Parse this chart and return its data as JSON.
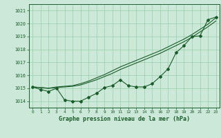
{
  "xlabel": "Graphe pression niveau de la mer (hPa)",
  "xlim": [
    -0.5,
    23.5
  ],
  "ylim": [
    1013.5,
    1021.5
  ],
  "yticks": [
    1014,
    1015,
    1016,
    1017,
    1018,
    1019,
    1020,
    1021
  ],
  "xticks": [
    0,
    1,
    2,
    3,
    4,
    5,
    6,
    7,
    8,
    9,
    10,
    11,
    12,
    13,
    14,
    15,
    16,
    17,
    18,
    19,
    20,
    21,
    22,
    23
  ],
  "bg_color": "#cce8d8",
  "grid_color": "#99ccaa",
  "line_color": "#1a5c2a",
  "line_zigzag": [
    1015.1,
    1014.9,
    1014.75,
    1015.0,
    1014.1,
    1014.0,
    1014.0,
    1014.3,
    1014.6,
    1015.05,
    1015.2,
    1015.65,
    1015.2,
    1015.1,
    1015.1,
    1015.35,
    1015.9,
    1016.5,
    1017.75,
    1018.3,
    1019.0,
    1019.05,
    1020.3,
    1020.5
  ],
  "line_upper1": [
    1015.1,
    1015.05,
    1015.0,
    1015.1,
    1015.15,
    1015.2,
    1015.35,
    1015.55,
    1015.8,
    1016.05,
    1016.35,
    1016.65,
    1016.9,
    1017.15,
    1017.4,
    1017.65,
    1017.9,
    1018.2,
    1018.5,
    1018.8,
    1019.15,
    1019.55,
    1019.95,
    1020.45
  ],
  "line_upper2": [
    1015.1,
    1015.05,
    1015.0,
    1015.05,
    1015.1,
    1015.15,
    1015.25,
    1015.45,
    1015.65,
    1015.9,
    1016.15,
    1016.45,
    1016.7,
    1016.95,
    1017.2,
    1017.45,
    1017.7,
    1018.0,
    1018.3,
    1018.6,
    1018.95,
    1019.35,
    1019.75,
    1020.2
  ]
}
